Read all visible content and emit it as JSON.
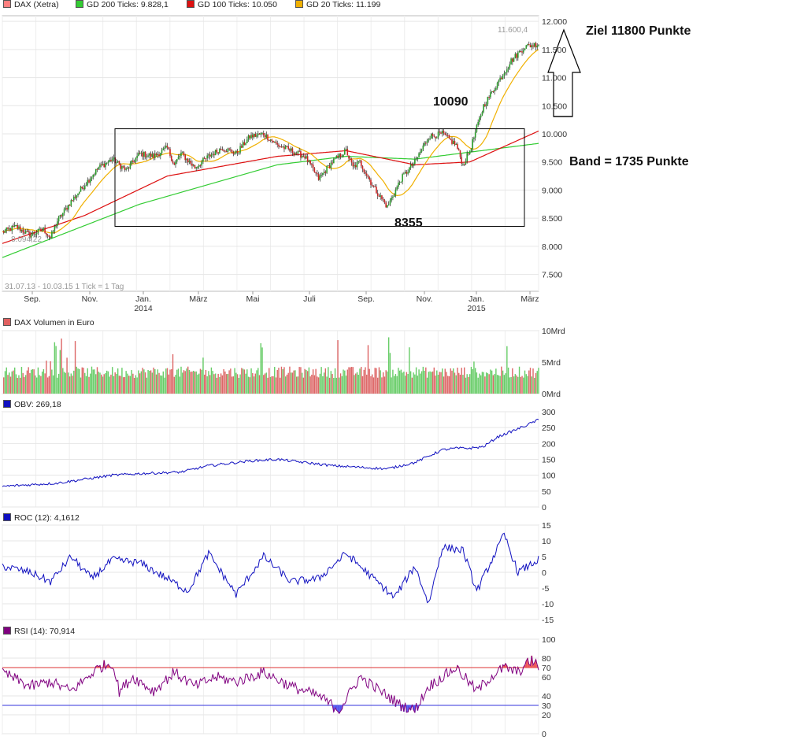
{
  "chart_data": [
    {
      "type": "line",
      "panel": "price",
      "title": "DAX (Xetra)",
      "legend": [
        {
          "label": "DAX (Xetra)",
          "color": "#ff8080"
        },
        {
          "label": "GD 200 Ticks: 9.828,1",
          "color": "#33cc33"
        },
        {
          "label": "GD 100 Ticks: 10.050",
          "color": "#dd1111"
        },
        {
          "label": "GD 20 Ticks: 11.199",
          "color": "#f0b000"
        }
      ],
      "period_label": "31.07.13 - 10.03.15   1 Tick = 1 Tag",
      "x_tick_labels": [
        "Sep.",
        "Nov.",
        "Jan.",
        "März",
        "Mai",
        "Juli",
        "Sep.",
        "Nov.",
        "Jan.",
        "März"
      ],
      "x_year_labels": [
        "2014",
        "2015"
      ],
      "ylim": [
        7200,
        12100
      ],
      "y_ticks": [
        "12.000",
        "11.500",
        "11.000",
        "10.500",
        "10.000",
        "9.500",
        "9.000",
        "8.500",
        "8.000",
        "7.500"
      ],
      "y_tick_values": [
        12000,
        11500,
        11000,
        10500,
        10000,
        9500,
        9000,
        8500,
        8000,
        7500
      ],
      "low_label": "8.094,22",
      "high_label": "11.600,4",
      "price_anchors": {
        "t": [
          0,
          10,
          20,
          30,
          35,
          40,
          50,
          60,
          70,
          80,
          90,
          100,
          110,
          120,
          125,
          130,
          140,
          150,
          160,
          170,
          180,
          190,
          200,
          210,
          220,
          230,
          240,
          250,
          255,
          260,
          270,
          280,
          290,
          300,
          310,
          320,
          330,
          335,
          340,
          350,
          360,
          370,
          380,
          390
        ],
        "v": [
          8250,
          8350,
          8200,
          8300,
          8150,
          8450,
          8800,
          9100,
          9400,
          9550,
          9350,
          9650,
          9600,
          9750,
          9450,
          9650,
          9400,
          9600,
          9750,
          9650,
          9950,
          10000,
          9800,
          9700,
          9600,
          9200,
          9500,
          9700,
          9400,
          9500,
          9050,
          8700,
          9200,
          9500,
          9950,
          10000,
          9800,
          9450,
          9700,
          10500,
          10900,
          11300,
          11550,
          11600
        ]
      },
      "gd200_anchors": {
        "t": [
          0,
          100,
          200,
          250,
          300,
          390
        ],
        "v": [
          7800,
          8750,
          9450,
          9600,
          9550,
          9830
        ]
      },
      "gd100_anchors": {
        "t": [
          0,
          60,
          120,
          200,
          250,
          300,
          340,
          390
        ],
        "v": [
          8050,
          8550,
          9250,
          9600,
          9700,
          9450,
          9500,
          10050
        ]
      },
      "annotations": [
        {
          "text": "Ziel 11800 Punkte"
        },
        {
          "text": "10090"
        },
        {
          "text": "Band = 1735 Punkte"
        },
        {
          "text": "8355"
        }
      ],
      "channel": {
        "top": 10090,
        "bottom": 8355
      }
    },
    {
      "type": "bar",
      "panel": "volume",
      "title": "DAX Volumen in Euro",
      "ylim": [
        0,
        10
      ],
      "y_ticks": [
        "10Mrd",
        "5Mrd",
        "0Mrd"
      ],
      "y_tick_values": [
        10,
        5,
        0
      ]
    },
    {
      "type": "line",
      "panel": "obv",
      "title": "OBV: 269,18",
      "ylim": [
        0,
        300
      ],
      "y_ticks": [
        "300",
        "250",
        "200",
        "150",
        "100",
        "50",
        "0"
      ],
      "y_tick_values": [
        300,
        250,
        200,
        150,
        100,
        50,
        0
      ],
      "anchors": {
        "t": [
          0,
          40,
          80,
          100,
          130,
          150,
          180,
          200,
          220,
          240,
          260,
          280,
          300,
          320,
          330,
          340,
          350,
          360,
          380,
          390
        ],
        "v": [
          65,
          75,
          100,
          105,
          110,
          130,
          145,
          150,
          140,
          130,
          125,
          120,
          140,
          180,
          185,
          185,
          190,
          220,
          255,
          275
        ]
      }
    },
    {
      "type": "line",
      "panel": "roc",
      "title": "ROC (12): 4,1612",
      "ylim": [
        -15,
        15
      ],
      "y_ticks": [
        "15",
        "10",
        "5",
        "0",
        "-5",
        "-10",
        "-15"
      ],
      "y_tick_values": [
        15,
        10,
        5,
        0,
        -5,
        -10,
        -15
      ],
      "anchors": {
        "t": [
          0,
          20,
          35,
          50,
          65,
          80,
          100,
          120,
          135,
          150,
          170,
          190,
          210,
          230,
          250,
          270,
          285,
          300,
          310,
          320,
          335,
          345,
          355,
          365,
          375,
          390
        ],
        "v": [
          2,
          0,
          -3,
          5,
          -2,
          4,
          3,
          -2,
          -6,
          6,
          -7,
          5,
          -3,
          -2,
          6,
          -2,
          -8,
          2,
          -10,
          8,
          7,
          -6,
          3,
          12,
          0,
          4
        ]
      }
    },
    {
      "type": "line",
      "panel": "rsi",
      "title": "RSI (14): 70,914",
      "ylim": [
        0,
        100
      ],
      "y_ticks": [
        "100",
        "80",
        "70",
        "60",
        "40",
        "30",
        "20",
        "0"
      ],
      "y_tick_values": [
        100,
        80,
        70,
        60,
        40,
        30,
        20,
        0
      ],
      "anchors": {
        "t": [
          0,
          20,
          35,
          50,
          70,
          80,
          85,
          95,
          110,
          125,
          140,
          155,
          170,
          190,
          210,
          230,
          245,
          260,
          275,
          290,
          300,
          310,
          325,
          330,
          345,
          355,
          365,
          375,
          385,
          390
        ],
        "v": [
          65,
          50,
          55,
          45,
          70,
          75,
          45,
          60,
          45,
          65,
          50,
          60,
          55,
          65,
          50,
          40,
          25,
          60,
          45,
          30,
          25,
          50,
          65,
          70,
          45,
          60,
          70,
          65,
          78,
          71
        ]
      }
    }
  ]
}
